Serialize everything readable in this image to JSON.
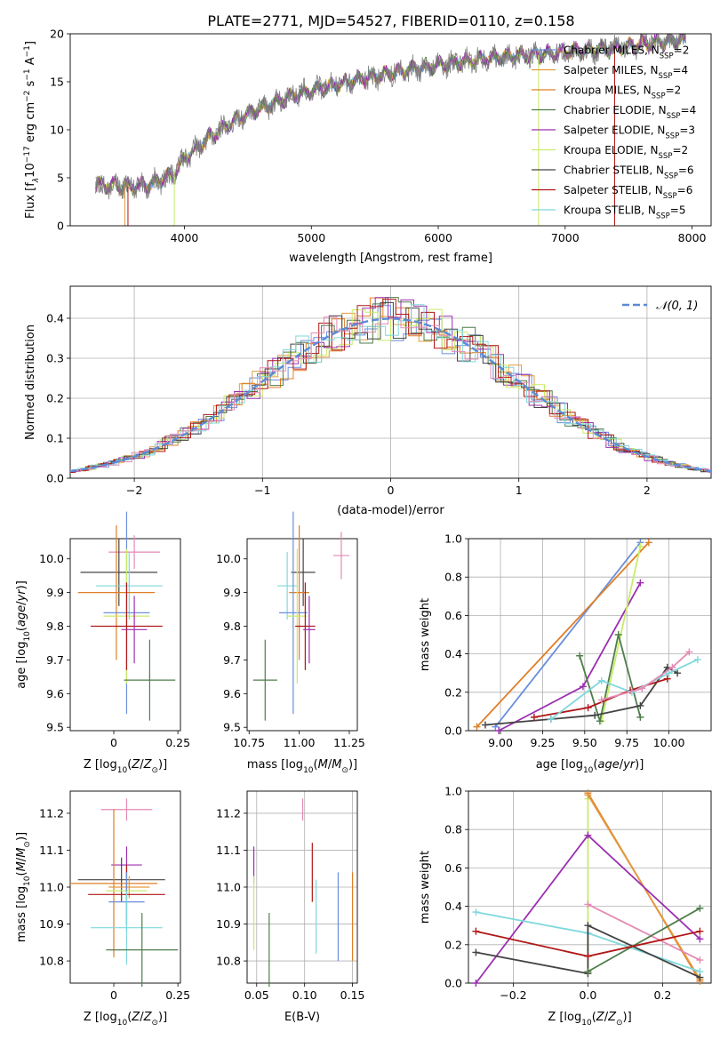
{
  "figure_title": "PLATE=2771, MJD=54527, FIBERID=0110, z=0.158",
  "series_colors": {
    "chabrier_miles": "#6a8fdc",
    "salpeter_miles": "#e39a3e",
    "kroupa_miles": "#df7f27",
    "chabrier_elodie": "#4f7d4a",
    "salpeter_elodie": "#9b2fb0",
    "kroupa_elodie": "#c8ec6a",
    "chabrier_stelib": "#444444",
    "salpeter_stelib": "#b01616",
    "kroupa_stelib": "#7fd8dc",
    "pink": "#e48ab4",
    "data_spectrum": "#808080",
    "gaussian": "#5b8bd6"
  },
  "chart_data": [
    {
      "id": "spectrum",
      "type": "line",
      "xlabel": "wavelength [Angstrom, rest frame]",
      "ylabel_parts": [
        "Flux [f",
        "λ",
        "10",
        "−17",
        " erg cm",
        "−2",
        " s",
        "−1",
        " A",
        "−1",
        "]"
      ],
      "xlim": [
        3100,
        8150
      ],
      "ylim": [
        0,
        20
      ],
      "xticks": [
        4000,
        5000,
        6000,
        7000,
        8000
      ],
      "yticks": [
        0,
        5,
        10,
        15,
        20
      ],
      "continuum_x": [
        3300,
        3500,
        3700,
        3900,
        4000,
        4200,
        4400,
        4600,
        4800,
        5000,
        5200,
        5400,
        5600,
        5800,
        6000,
        6200,
        6400,
        6600,
        6800,
        7000,
        7200,
        7400,
        7600,
        7800,
        7950
      ],
      "continuum_y": [
        4.3,
        4.1,
        4.2,
        5.2,
        7.0,
        9.2,
        11.0,
        12.2,
        13.3,
        14.1,
        14.7,
        15.3,
        15.8,
        16.3,
        16.7,
        17.1,
        17.4,
        17.7,
        17.8,
        18.1,
        18.3,
        18.5,
        18.9,
        19.2,
        19.4
      ],
      "legend": [
        {
          "label": "Chabrier MILES, N",
          "sub": "SSP",
          "value": "=2",
          "key": "chabrier_miles"
        },
        {
          "label": "Salpeter MILES, N",
          "sub": "SSP",
          "value": "=4",
          "key": "salpeter_miles"
        },
        {
          "label": "Kroupa MILES, N",
          "sub": "SSP",
          "value": "=2",
          "key": "kroupa_miles"
        },
        {
          "label": "Chabrier ELODIE, N",
          "sub": "SSP",
          "value": "=4",
          "key": "chabrier_elodie"
        },
        {
          "label": "Salpeter ELODIE, N",
          "sub": "SSP",
          "value": "=3",
          "key": "salpeter_elodie"
        },
        {
          "label": "Kroupa ELODIE, N",
          "sub": "SSP",
          "value": "=2",
          "key": "kroupa_elodie"
        },
        {
          "label": "Chabrier STELIB, N",
          "sub": "SSP",
          "value": "=6",
          "key": "chabrier_stelib"
        },
        {
          "label": "Salpeter STELIB, N",
          "sub": "SSP",
          "value": "=6",
          "key": "salpeter_stelib"
        },
        {
          "label": "Kroupa STELIB, N",
          "sub": "SSP",
          "value": "=5",
          "key": "kroupa_stelib"
        }
      ]
    },
    {
      "id": "residuals",
      "type": "line",
      "xlabel": "(data-model)/error",
      "ylabel": "Normed distribution",
      "xlim": [
        -2.5,
        2.5
      ],
      "ylim": [
        0,
        0.48
      ],
      "xticks": [
        -2,
        -1,
        0,
        1,
        2
      ],
      "yticks": [
        0.0,
        0.1,
        0.2,
        0.3,
        0.4
      ],
      "legend": "𝒩(0, 1)",
      "grid": true
    },
    {
      "id": "age_vs_z",
      "type": "scatter",
      "xlabel": "Z [log10(Z/Z⊙)]",
      "ylabel": "age  [log10(age/yr)]",
      "xlim": [
        -0.17,
        0.26
      ],
      "ylim": [
        9.49,
        10.06
      ],
      "xticks": [
        0.0,
        0.25
      ],
      "yticks": [
        9.5,
        9.6,
        9.7,
        9.8,
        9.9,
        10.0
      ],
      "points": [
        {
          "key": "pink",
          "x": 0.08,
          "xerr": 0.1,
          "y": 10.02,
          "yerr": 0.05
        },
        {
          "key": "chabrier_stelib",
          "x": 0.02,
          "xerr": 0.15,
          "y": 9.96,
          "yerr": 0.1
        },
        {
          "key": "kroupa_stelib",
          "x": 0.06,
          "xerr": 0.13,
          "y": 9.92,
          "yerr": 0.1
        },
        {
          "key": "kroupa_miles",
          "x": 0.01,
          "xerr": 0.15,
          "y": 9.9,
          "yerr": 0.2
        },
        {
          "key": "chabrier_miles",
          "x": 0.05,
          "xerr": 0.09,
          "y": 9.84,
          "yerr": 0.3
        },
        {
          "key": "kroupa_elodie",
          "x": 0.05,
          "xerr": 0.09,
          "y": 9.83,
          "yerr": 0.2
        },
        {
          "key": "salpeter_stelib",
          "x": 0.05,
          "xerr": 0.14,
          "y": 9.8,
          "yerr": 0.13
        },
        {
          "key": "salpeter_elodie",
          "x": 0.08,
          "xerr": 0.05,
          "y": 9.79,
          "yerr": 0.1
        },
        {
          "key": "chabrier_elodie",
          "x": 0.14,
          "xerr": 0.1,
          "y": 9.64,
          "yerr": 0.12
        }
      ]
    },
    {
      "id": "age_vs_mass",
      "type": "scatter",
      "xlabel": "mass [log10(M/M⊙)]",
      "xlim": [
        10.74,
        11.29
      ],
      "ylim": [
        9.49,
        10.06
      ],
      "xticks": [
        10.75,
        11.0,
        11.25
      ],
      "xticklabels": [
        "10.75",
        "11.00",
        "11.25"
      ],
      "yticks": [
        9.5,
        9.6,
        9.7,
        9.8,
        9.9,
        10.0
      ],
      "points": [
        {
          "key": "pink",
          "x": 11.21,
          "xerr": 0.04,
          "y": 10.01,
          "yerr": 0.07
        },
        {
          "key": "chabrier_stelib",
          "x": 11.02,
          "xerr": 0.06,
          "y": 9.96,
          "yerr": 0.1
        },
        {
          "key": "kroupa_stelib",
          "x": 10.94,
          "xerr": 0.05,
          "y": 9.92,
          "yerr": 0.1
        },
        {
          "key": "kroupa_miles",
          "x": 11.0,
          "xerr": 0.05,
          "y": 9.9,
          "yerr": 0.2
        },
        {
          "key": "chabrier_miles",
          "x": 10.97,
          "xerr": 0.07,
          "y": 9.84,
          "yerr": 0.3
        },
        {
          "key": "kroupa_elodie",
          "x": 10.99,
          "xerr": 0.05,
          "y": 9.83,
          "yerr": 0.2
        },
        {
          "key": "salpeter_stelib",
          "x": 11.03,
          "xerr": 0.05,
          "y": 9.8,
          "yerr": 0.13
        },
        {
          "key": "salpeter_elodie",
          "x": 11.05,
          "xerr": 0.03,
          "y": 9.79,
          "yerr": 0.1
        },
        {
          "key": "chabrier_elodie",
          "x": 10.83,
          "xerr": 0.06,
          "y": 9.64,
          "yerr": 0.12
        }
      ]
    },
    {
      "id": "weight_vs_age",
      "type": "line",
      "xlabel": "age  [log10(age/yr)]",
      "ylabel": "mass weight",
      "xlim": [
        8.81,
        10.25
      ],
      "ylim": [
        0.0,
        1.0
      ],
      "xticks": [
        9.0,
        9.25,
        9.5,
        9.75,
        10.0
      ],
      "xticklabels": [
        "9.00",
        "9.25",
        "9.50",
        "9.75",
        "10.00"
      ],
      "yticks": [
        0.0,
        0.2,
        0.4,
        0.6,
        0.8,
        1.0
      ],
      "grid": true,
      "series": [
        {
          "key": "chabrier_miles",
          "x": [
            8.97,
            9.83
          ],
          "y": [
            0.02,
            0.98
          ]
        },
        {
          "key": "kroupa_miles",
          "x": [
            8.86,
            9.88
          ],
          "y": [
            0.02,
            0.98
          ]
        },
        {
          "key": "salpeter_elodie",
          "x": [
            8.99,
            9.49,
            9.83
          ],
          "y": [
            0.0,
            0.23,
            0.77
          ]
        },
        {
          "key": "kroupa_elodie",
          "x": [
            9.6,
            9.83
          ],
          "y": [
            0.05,
            0.96
          ]
        },
        {
          "key": "chabrier_elodie",
          "x": [
            9.47,
            9.59,
            9.7,
            9.83
          ],
          "y": [
            0.39,
            0.05,
            0.5,
            0.07
          ]
        },
        {
          "key": "chabrier_stelib",
          "x": [
            8.91,
            9.3,
            9.56,
            9.83,
            9.99,
            10.05
          ],
          "y": [
            0.03,
            0.06,
            0.08,
            0.13,
            0.33,
            0.3
          ]
        },
        {
          "key": "salpeter_stelib",
          "x": [
            9.2,
            9.52,
            9.77,
            9.99
          ],
          "y": [
            0.07,
            0.12,
            0.21,
            0.27
          ]
        },
        {
          "key": "kroupa_stelib",
          "x": [
            9.3,
            9.6,
            9.78,
            10.0,
            10.17
          ],
          "y": [
            0.06,
            0.26,
            0.2,
            0.3,
            0.37
          ]
        },
        {
          "key": "pink",
          "x": [
            9.6,
            9.84,
            10.02,
            10.12
          ],
          "y": [
            0.16,
            0.22,
            0.33,
            0.41
          ]
        }
      ]
    },
    {
      "id": "mass_vs_z",
      "type": "scatter",
      "xlabel": "Z [log10(Z/Z⊙)]",
      "ylabel": "mass [log10(M/M⊙)]",
      "xlim": [
        -0.17,
        0.26
      ],
      "ylim": [
        10.74,
        11.26
      ],
      "xticks": [
        0.0,
        0.25
      ],
      "yticks": [
        10.8,
        10.9,
        11.0,
        11.1,
        11.2
      ],
      "points": [
        {
          "key": "pink",
          "x": 0.05,
          "xerr": 0.1,
          "y": 11.21,
          "yerr": 0.03
        },
        {
          "key": "salpeter_elodie",
          "x": 0.05,
          "xerr": 0.06,
          "y": 11.06,
          "yerr": 0.05
        },
        {
          "key": "chabrier_stelib",
          "x": 0.03,
          "xerr": 0.17,
          "y": 11.02,
          "yerr": 0.06
        },
        {
          "key": "kroupa_miles",
          "x": 0.0,
          "xerr": 0.17,
          "y": 11.01,
          "yerr": 0.2
        },
        {
          "key": "salpeter_miles",
          "x": 0.06,
          "xerr": 0.08,
          "y": 11.0,
          "yerr": 0.03
        },
        {
          "key": "kroupa_elodie",
          "x": 0.05,
          "xerr": 0.08,
          "y": 10.99,
          "yerr": 0.03
        },
        {
          "key": "salpeter_stelib",
          "x": 0.05,
          "xerr": 0.15,
          "y": 10.98,
          "yerr": 0.08
        },
        {
          "key": "chabrier_miles",
          "x": 0.05,
          "xerr": 0.07,
          "y": 10.96,
          "yerr": 0.08
        },
        {
          "key": "kroupa_stelib",
          "x": 0.05,
          "xerr": 0.14,
          "y": 10.89,
          "yerr": 0.1
        },
        {
          "key": "chabrier_elodie",
          "x": 0.11,
          "xerr": 0.14,
          "y": 10.83,
          "yerr": 0.1
        }
      ]
    },
    {
      "id": "mass_vs_ebv",
      "type": "scatter",
      "xlabel": "E(B-V)",
      "xlim": [
        0.04,
        0.155
      ],
      "ylim": [
        10.74,
        11.26
      ],
      "xticks": [
        0.05,
        0.1,
        0.15
      ],
      "xticklabels": [
        "0.05",
        "0.10",
        "0.15"
      ],
      "yticks": [
        10.8,
        10.9,
        11.0,
        11.1,
        11.2
      ],
      "grid": true,
      "points": [
        {
          "key": "pink",
          "x": 0.098,
          "y": 11.21,
          "yerr": 0.03
        },
        {
          "key": "salpeter_elodie",
          "x": 0.047,
          "y": 11.06,
          "yerr": 0.05
        },
        {
          "key": "salpeter_stelib",
          "x": 0.108,
          "y": 11.04,
          "yerr": 0.08
        },
        {
          "key": "kroupa_stelib",
          "x": 0.112,
          "y": 10.92,
          "yerr": 0.1
        },
        {
          "key": "kroupa_elodie",
          "x": 0.047,
          "y": 10.93,
          "yerr": 0.1
        },
        {
          "key": "chabrier_miles",
          "x": 0.135,
          "y": 10.92,
          "yerr": 0.12
        },
        {
          "key": "kroupa_miles",
          "x": 0.15,
          "y": 10.92,
          "yerr": 0.12
        },
        {
          "key": "chabrier_elodie",
          "x": 0.063,
          "y": 10.83,
          "yerr": 0.1
        }
      ]
    },
    {
      "id": "weight_vs_z",
      "type": "line",
      "xlabel": "Z [log10(Z/Z⊙)]",
      "ylabel": "mass weight",
      "xlim": [
        -0.32,
        0.33
      ],
      "ylim": [
        0.0,
        1.0
      ],
      "xticks": [
        -0.2,
        0.0,
        0.2
      ],
      "xticklabels": [
        "−0.2",
        "0.0",
        "0.2"
      ],
      "yticks": [
        0.0,
        0.2,
        0.4,
        0.6,
        0.8,
        1.0
      ],
      "grid": true,
      "series": [
        {
          "key": "kroupa_elodie",
          "x": [
            0.0,
            0.0
          ],
          "y": [
            0.05,
            0.96
          ]
        },
        {
          "key": "kroupa_miles",
          "x": [
            0.0,
            0.3
          ],
          "y": [
            0.99,
            0.01
          ]
        },
        {
          "key": "salpeter_miles",
          "x": [
            0.0,
            0.3
          ],
          "y": [
            0.98,
            0.02
          ]
        },
        {
          "key": "salpeter_elodie",
          "x": [
            -0.3,
            0.0,
            0.3
          ],
          "y": [
            0.0,
            0.77,
            0.23
          ]
        },
        {
          "key": "kroupa_stelib",
          "x": [
            -0.3,
            0.0,
            0.3
          ],
          "y": [
            0.37,
            0.26,
            0.06
          ]
        },
        {
          "key": "pink",
          "x": [
            0.0,
            0.3
          ],
          "y": [
            0.41,
            0.12
          ]
        },
        {
          "key": "chabrier_stelib",
          "x": [
            -0.3,
            0.0,
            0.0,
            0.3
          ],
          "y": [
            0.16,
            0.05,
            0.3,
            0.03
          ]
        },
        {
          "key": "chabrier_elodie",
          "x": [
            0.0,
            0.3
          ],
          "y": [
            0.06,
            0.39
          ]
        },
        {
          "key": "salpeter_stelib",
          "x": [
            -0.3,
            0.0,
            0.3
          ],
          "y": [
            0.27,
            0.14,
            0.27
          ]
        }
      ]
    }
  ]
}
